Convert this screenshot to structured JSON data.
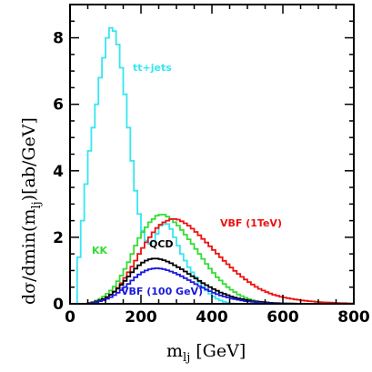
{
  "chart_data": {
    "type": "line",
    "style": "step-histogram",
    "bin_width_x": 10,
    "xlabel": "m_lj [GeV]",
    "ylabel": "dσ/dmin(m_lj)[ab/GeV]",
    "xlim": [
      0,
      800
    ],
    "ylim": [
      0,
      9
    ],
    "x_ticks": [
      0,
      200,
      400,
      600,
      800
    ],
    "y_ticks": [
      0,
      2,
      4,
      6,
      8
    ],
    "legend": "inline labels beside each curve",
    "grid": false,
    "series": [
      {
        "name": "tt+jets",
        "color": "#35e6f2",
        "x": [
          15,
          25,
          35,
          45,
          55,
          65,
          75,
          85,
          95,
          105,
          115,
          125,
          135,
          145,
          155,
          165,
          175,
          185,
          195,
          205,
          215,
          225,
          235,
          245,
          255,
          265,
          275,
          285,
          295,
          305,
          315,
          325,
          335,
          345,
          355,
          365,
          375,
          385,
          395,
          405,
          415,
          425,
          435,
          445,
          455,
          465,
          475,
          485,
          495,
          505,
          515,
          525,
          535,
          545
        ],
        "y": [
          0.0,
          1.4,
          2.5,
          3.6,
          4.6,
          5.3,
          6.0,
          6.8,
          7.4,
          8.0,
          8.3,
          8.2,
          7.8,
          7.1,
          6.3,
          5.3,
          4.3,
          3.4,
          2.7,
          2.2,
          1.9,
          1.8,
          1.9,
          2.1,
          2.35,
          2.4,
          2.4,
          2.25,
          2.0,
          1.75,
          1.5,
          1.3,
          1.1,
          0.95,
          0.8,
          0.65,
          0.5,
          0.4,
          0.3,
          0.22,
          0.15,
          0.1,
          0.06,
          0.03,
          0.01,
          0.0,
          0.0,
          0.0,
          0.0,
          0.0,
          0.0,
          0.0,
          0.0,
          0.0
        ]
      },
      {
        "name": "KK",
        "color": "#33dd33",
        "x": [
          55,
          65,
          75,
          85,
          95,
          105,
          115,
          125,
          135,
          145,
          155,
          165,
          175,
          185,
          195,
          205,
          215,
          225,
          235,
          245,
          255,
          265,
          275,
          285,
          295,
          305,
          315,
          325,
          335,
          345,
          355,
          365,
          375,
          385,
          395,
          405,
          415,
          425,
          435,
          445,
          455,
          465,
          475,
          485,
          495,
          505,
          515,
          525,
          535,
          545,
          555,
          565,
          575,
          585,
          595,
          605,
          615,
          625,
          635,
          645,
          655,
          665,
          675,
          685,
          695,
          705
        ],
        "y": [
          0.02,
          0.05,
          0.1,
          0.15,
          0.22,
          0.3,
          0.4,
          0.52,
          0.68,
          0.85,
          1.05,
          1.25,
          1.5,
          1.75,
          1.98,
          2.15,
          2.3,
          2.45,
          2.55,
          2.65,
          2.68,
          2.68,
          2.62,
          2.55,
          2.45,
          2.35,
          2.22,
          2.08,
          1.94,
          1.8,
          1.65,
          1.5,
          1.35,
          1.2,
          1.06,
          0.93,
          0.8,
          0.7,
          0.6,
          0.5,
          0.42,
          0.35,
          0.28,
          0.23,
          0.18,
          0.14,
          0.11,
          0.08,
          0.06,
          0.05,
          0.04,
          0.03,
          0.02,
          0.015,
          0.01,
          0.008,
          0.006,
          0.004,
          0.003,
          0.002,
          0.001,
          0.0,
          0.0,
          0.0,
          0.0,
          0.0
        ]
      },
      {
        "name": "VBF (1TeV)",
        "color": "#ee1111",
        "x": [
          55,
          65,
          75,
          85,
          95,
          105,
          115,
          125,
          135,
          145,
          155,
          165,
          175,
          185,
          195,
          205,
          215,
          225,
          235,
          245,
          255,
          265,
          275,
          285,
          295,
          305,
          315,
          325,
          335,
          345,
          355,
          365,
          375,
          385,
          395,
          405,
          415,
          425,
          435,
          445,
          455,
          465,
          475,
          485,
          495,
          505,
          515,
          525,
          535,
          545,
          555,
          565,
          575,
          585,
          595,
          605,
          615,
          625,
          635,
          645,
          655,
          665,
          675,
          685,
          695,
          705,
          715,
          725,
          735,
          745,
          755,
          765,
          775,
          785,
          795
        ],
        "y": [
          0.02,
          0.04,
          0.07,
          0.1,
          0.15,
          0.2,
          0.28,
          0.37,
          0.48,
          0.62,
          0.78,
          0.95,
          1.12,
          1.3,
          1.5,
          1.68,
          1.85,
          2.0,
          2.15,
          2.28,
          2.38,
          2.45,
          2.5,
          2.55,
          2.55,
          2.53,
          2.48,
          2.42,
          2.35,
          2.26,
          2.16,
          2.06,
          1.95,
          1.84,
          1.73,
          1.62,
          1.51,
          1.4,
          1.29,
          1.19,
          1.09,
          0.99,
          0.9,
          0.81,
          0.73,
          0.65,
          0.58,
          0.51,
          0.45,
          0.4,
          0.35,
          0.31,
          0.27,
          0.24,
          0.21,
          0.19,
          0.17,
          0.15,
          0.13,
          0.12,
          0.1,
          0.09,
          0.08,
          0.07,
          0.06,
          0.05,
          0.045,
          0.04,
          0.035,
          0.03,
          0.025,
          0.02,
          0.018,
          0.015,
          0.012
        ]
      },
      {
        "name": "QCD",
        "color": "#000000",
        "x": [
          55,
          65,
          75,
          85,
          95,
          105,
          115,
          125,
          135,
          145,
          155,
          165,
          175,
          185,
          195,
          205,
          215,
          225,
          235,
          245,
          255,
          265,
          275,
          285,
          295,
          305,
          315,
          325,
          335,
          345,
          355,
          365,
          375,
          385,
          395,
          405,
          415,
          425,
          435,
          445,
          455,
          465,
          475,
          485,
          495,
          505,
          515,
          525,
          535,
          545,
          555,
          565,
          575,
          585,
          595,
          605,
          615,
          625,
          635,
          645,
          655,
          665,
          675,
          685
        ],
        "y": [
          0.02,
          0.04,
          0.07,
          0.1,
          0.14,
          0.2,
          0.27,
          0.36,
          0.46,
          0.57,
          0.69,
          0.82,
          0.95,
          1.06,
          1.16,
          1.24,
          1.3,
          1.34,
          1.36,
          1.36,
          1.34,
          1.31,
          1.27,
          1.22,
          1.16,
          1.1,
          1.04,
          0.97,
          0.9,
          0.83,
          0.76,
          0.69,
          0.62,
          0.56,
          0.5,
          0.44,
          0.39,
          0.34,
          0.3,
          0.26,
          0.22,
          0.19,
          0.16,
          0.14,
          0.12,
          0.1,
          0.08,
          0.07,
          0.06,
          0.05,
          0.04,
          0.03,
          0.025,
          0.02,
          0.015,
          0.012,
          0.009,
          0.007,
          0.005,
          0.004,
          0.003,
          0.002,
          0.001,
          0.0
        ]
      },
      {
        "name": "VBF (100 GeV)",
        "color": "#1a1add",
        "x": [
          55,
          65,
          75,
          85,
          95,
          105,
          115,
          125,
          135,
          145,
          155,
          165,
          175,
          185,
          195,
          205,
          215,
          225,
          235,
          245,
          255,
          265,
          275,
          285,
          295,
          305,
          315,
          325,
          335,
          345,
          355,
          365,
          375,
          385,
          395,
          405,
          415,
          425,
          435,
          445,
          455,
          465,
          475,
          485,
          495,
          505,
          515,
          525,
          535,
          545,
          555,
          565,
          575,
          585,
          595,
          605,
          615,
          625,
          635,
          645,
          655,
          665,
          675,
          685
        ],
        "y": [
          0.01,
          0.03,
          0.05,
          0.08,
          0.11,
          0.15,
          0.2,
          0.26,
          0.33,
          0.41,
          0.5,
          0.6,
          0.7,
          0.8,
          0.88,
          0.95,
          1.0,
          1.04,
          1.06,
          1.07,
          1.06,
          1.04,
          1.01,
          0.97,
          0.93,
          0.88,
          0.83,
          0.77,
          0.71,
          0.65,
          0.59,
          0.53,
          0.48,
          0.43,
          0.38,
          0.33,
          0.29,
          0.25,
          0.22,
          0.19,
          0.16,
          0.14,
          0.12,
          0.1,
          0.08,
          0.07,
          0.06,
          0.05,
          0.04,
          0.03,
          0.025,
          0.02,
          0.015,
          0.012,
          0.009,
          0.007,
          0.005,
          0.004,
          0.003,
          0.002,
          0.0015,
          0.001,
          0.0005,
          0.0
        ]
      }
    ]
  },
  "labels": {
    "ttjets": "tt+jets",
    "vbf1tev": "VBF (1TeV)",
    "kk": "KK",
    "qcd": "QCD",
    "vbf100": "VBF (100 GeV)"
  },
  "axes": {
    "x_label_main": "m",
    "x_label_sub": "lj",
    "x_label_rest": " [GeV]",
    "y_label_pre": "dσ/dmin(m",
    "y_label_sub": "lj",
    "y_label_rest": ")[ab/GeV]"
  }
}
